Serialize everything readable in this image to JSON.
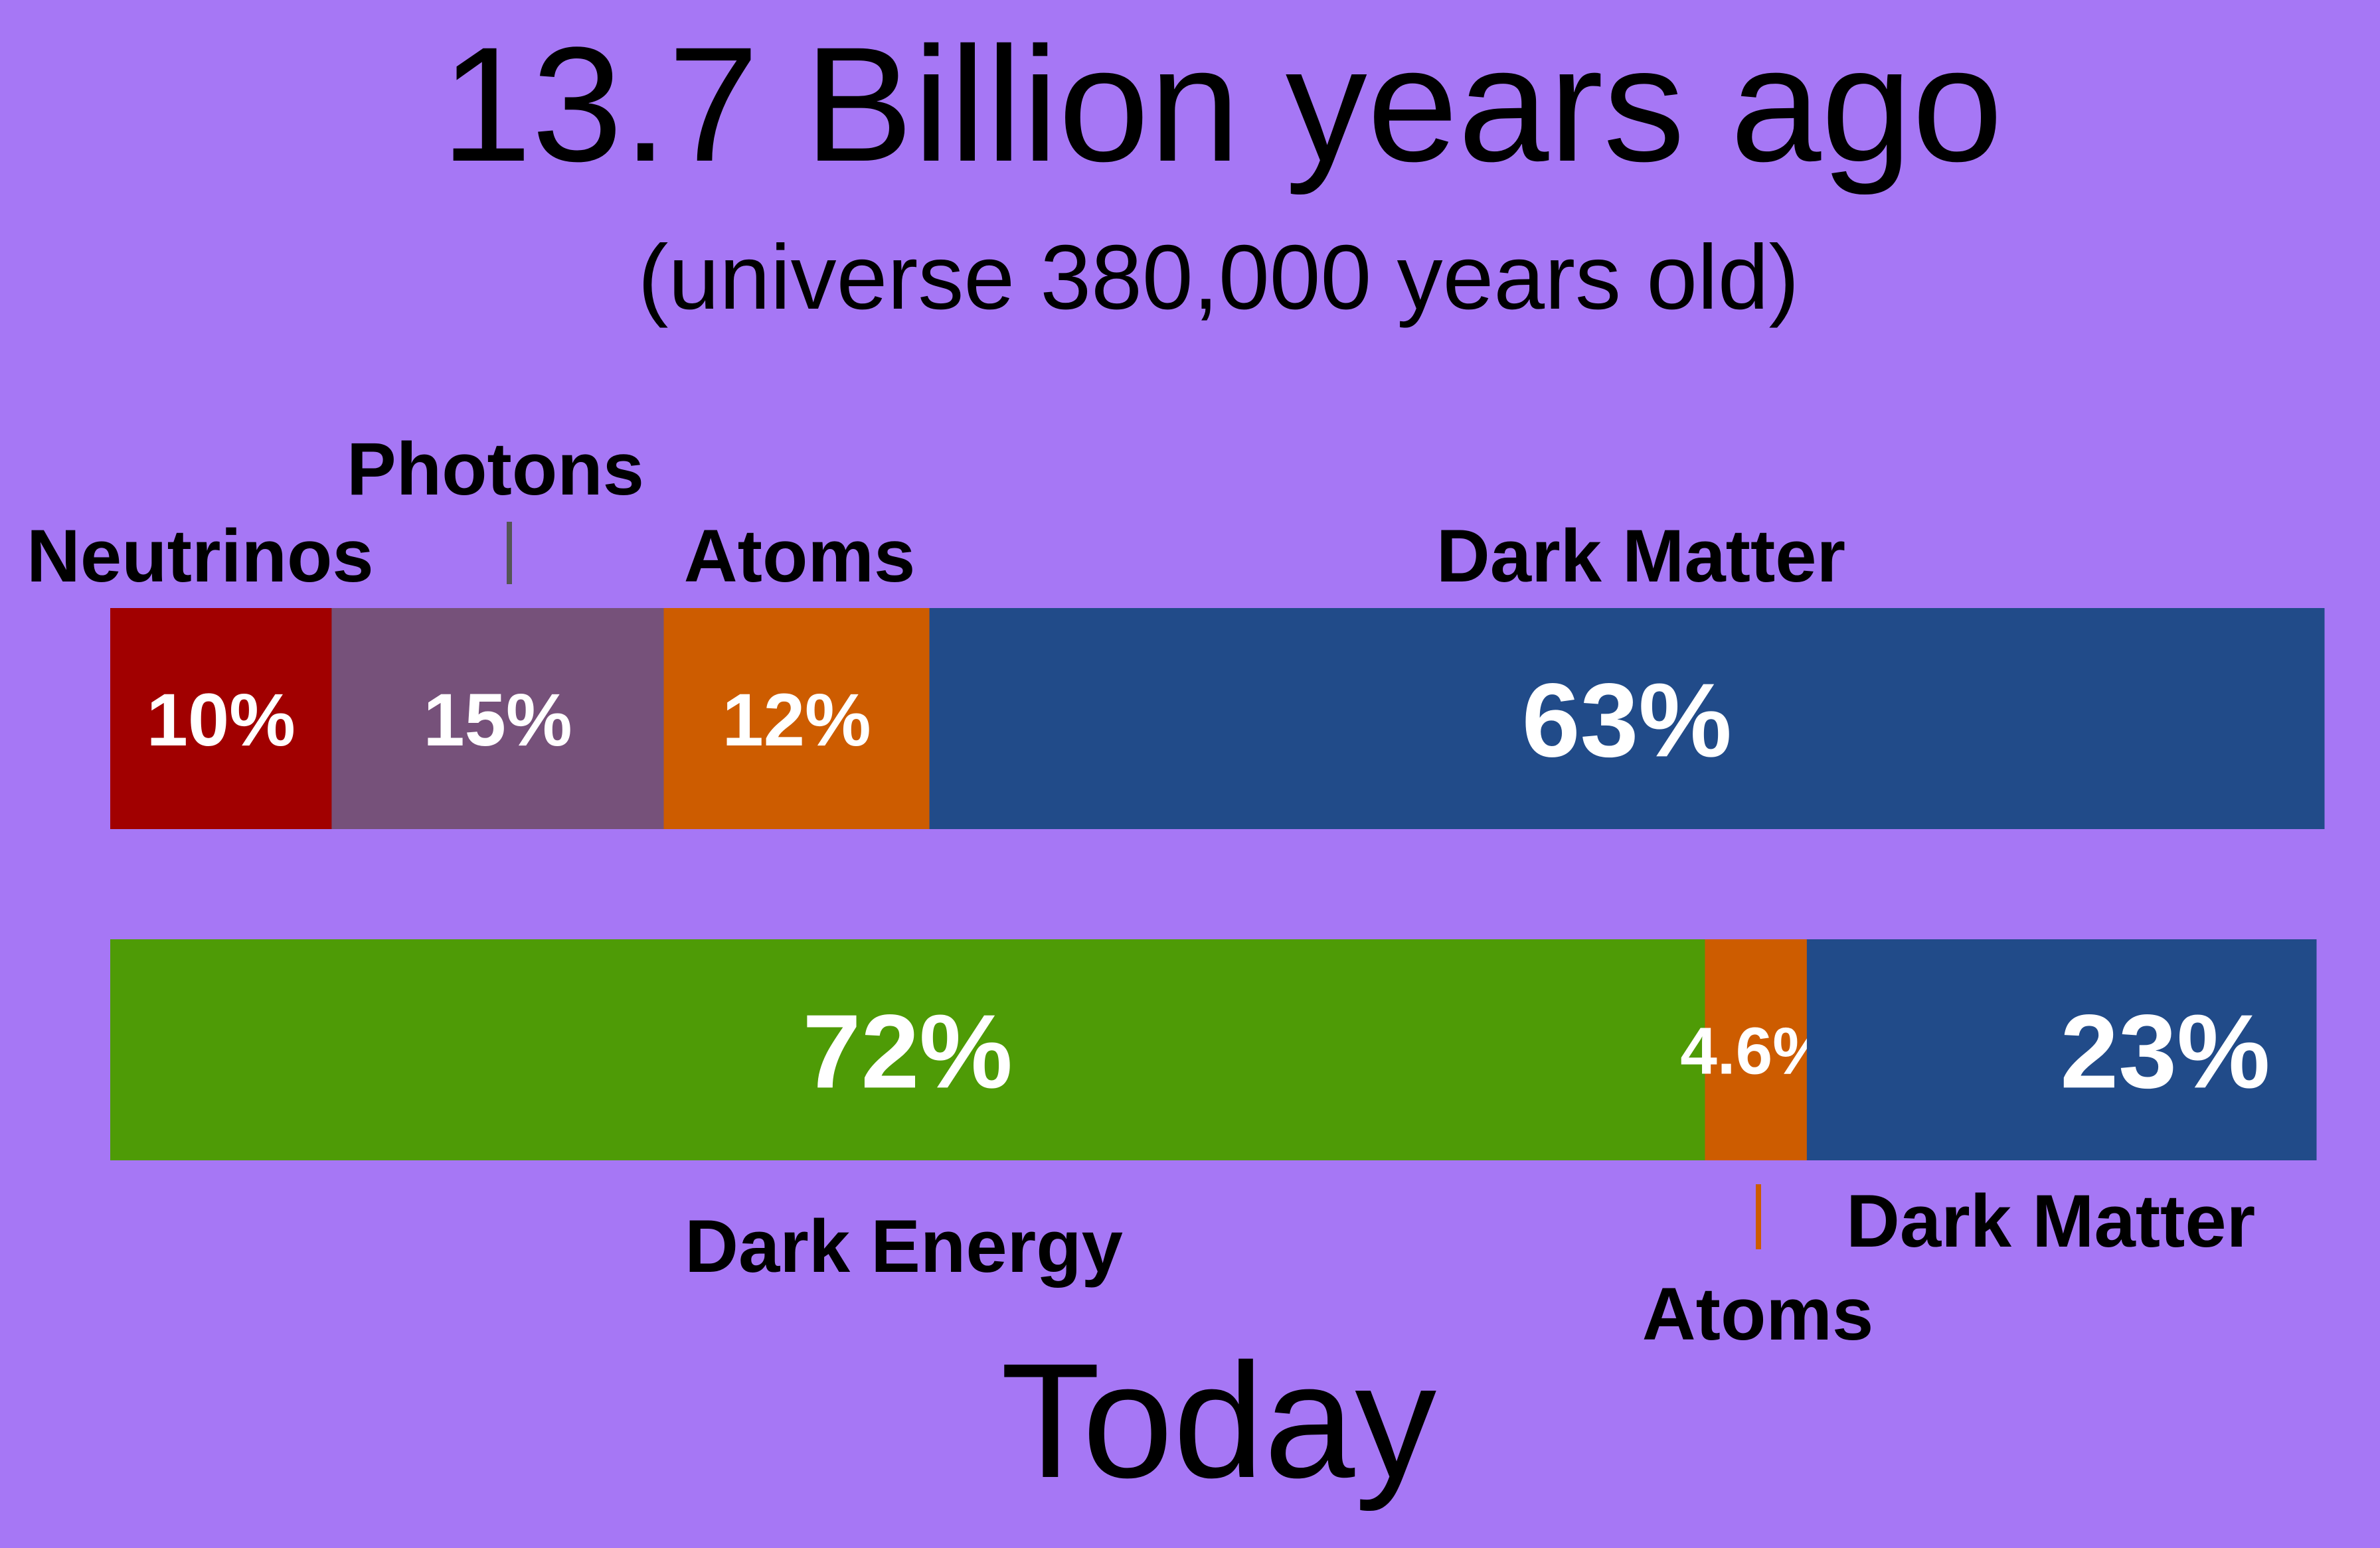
{
  "title": "13.7 Billion years ago",
  "subtitle": "(universe 380,000 years old)",
  "bottom_title": "Today",
  "chart_data": [
    {
      "type": "bar",
      "orientation": "horizontal",
      "stacked": true,
      "title": "13.7 Billion years ago",
      "subtitle": "(universe 380,000 years old)",
      "categories": [
        "Neutrinos",
        "Photons",
        "Atoms",
        "Dark Matter"
      ],
      "values": [
        10,
        15,
        12,
        63
      ],
      "value_labels": [
        "10%",
        "15%",
        "12%",
        "63%"
      ],
      "colors": [
        "#a10000",
        "#76517a",
        "#cd5c00",
        "#214b89"
      ],
      "label_position": "above"
    },
    {
      "type": "bar",
      "orientation": "horizontal",
      "stacked": true,
      "title": "Today",
      "categories": [
        "Dark Energy",
        "Atoms",
        "Dark Matter"
      ],
      "values": [
        72,
        4.6,
        23
      ],
      "value_labels": [
        "72%",
        "4.6%",
        "23%"
      ],
      "colors": [
        "#4e9b06",
        "#cd5c00",
        "#214b89"
      ],
      "label_position": "below"
    }
  ]
}
